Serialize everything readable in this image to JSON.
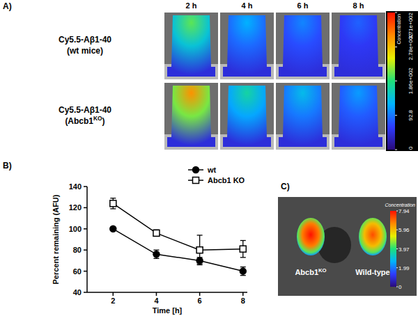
{
  "chart_data": {
    "type": "line",
    "panel_label": "B)",
    "x_label": "Time [h]",
    "y_label": "Percent remaining (AFU)",
    "x": [
      2,
      4,
      6,
      8
    ],
    "xlim": [
      0.8,
      8.2
    ],
    "xticks": [
      2,
      4,
      6,
      8
    ],
    "ylim": [
      40,
      140
    ],
    "yticks": [
      40,
      60,
      80,
      100,
      120,
      140
    ],
    "legend": "top-right",
    "series": [
      {
        "name": "wt",
        "color": "#000000",
        "marker": "circle",
        "line_style": "solid",
        "values": [
          100,
          76,
          70,
          60
        ],
        "errors": [
          0,
          4,
          3,
          4
        ]
      },
      {
        "name": "Abcb1 KO",
        "color": "#000000",
        "marker": "square-open",
        "line_style": "solid",
        "values": [
          124,
          96,
          80,
          81
        ],
        "errors": [
          5,
          3,
          14,
          8
        ]
      }
    ]
  },
  "panel_a": {
    "panel_label": "A)",
    "columns": [
      "2 h",
      "4 h",
      "6 h",
      "8 h"
    ],
    "rows": [
      {
        "label": "Cy5.5-Aβ1-40",
        "group": {
          "base": "(wt mice)"
        }
      },
      {
        "label": "Cy5.5-Aβ1-40",
        "group": {
          "base": "(Abcb1",
          "sup": "KO",
          "end": ")"
        }
      }
    ],
    "colorbar": {
      "title": "Concentration",
      "range": [
        0,
        371
      ],
      "ticks": [
        {
          "value": 371,
          "label": "3.71e+002"
        },
        {
          "value": 278,
          "label": "2.78e+002"
        },
        {
          "value": 186,
          "label": "1.86e+002"
        },
        {
          "value": 92.8,
          "label": "92.8"
        },
        0
      ]
    }
  },
  "panel_c": {
    "panel_label": "C)",
    "labels": [
      {
        "base": "Abcb1",
        "sup": "KO"
      },
      {
        "base": "Wild-type"
      }
    ],
    "colorbar": {
      "title": "Concentration",
      "range": [
        0,
        7.94
      ],
      "ticks": [
        7.94,
        5.96,
        3.97,
        1.99,
        0
      ]
    }
  }
}
